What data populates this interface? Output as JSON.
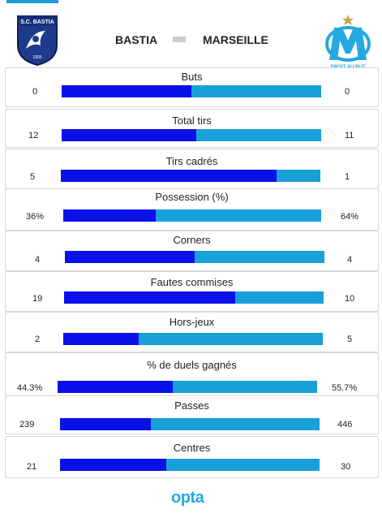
{
  "header": {
    "home_team": "BASTIA",
    "away_team": "MARSEILLE",
    "home_badge_text": "S.C. BASTIA",
    "home_badge_year": "1905",
    "away_badge_text": "DROIT AU BUT",
    "colors": {
      "home": "#0a10e8",
      "away": "#1aa0d8",
      "opta": "#26a8e0"
    }
  },
  "stats": [
    {
      "label": "Buts",
      "home": "0",
      "away": "0",
      "home_share": 0.5
    },
    {
      "label": "Total tirs",
      "home": "12",
      "away": "11",
      "home_share": 0.52
    },
    {
      "label": "Tirs cadrés",
      "home": "5",
      "away": "1",
      "home_share": 0.83
    },
    {
      "label": "Possession (%)",
      "home": "36%",
      "away": "64%",
      "home_share": 0.36
    },
    {
      "label": "Corners",
      "home": "4",
      "away": "4",
      "home_share": 0.5
    },
    {
      "label": "Fautes commises",
      "home": "19",
      "away": "10",
      "home_share": 0.66
    },
    {
      "label": "Hors-jeux",
      "home": "2",
      "away": "5",
      "home_share": 0.29
    },
    {
      "label": "% de duels gagnés",
      "home": "44.3%",
      "away": "55.7%",
      "home_share": 0.443
    },
    {
      "label": "Passes",
      "home": "239",
      "away": "446",
      "home_share": 0.35
    },
    {
      "label": "Centres",
      "home": "21",
      "away": "30",
      "home_share": 0.41
    }
  ],
  "footer": {
    "brand": "opta"
  }
}
